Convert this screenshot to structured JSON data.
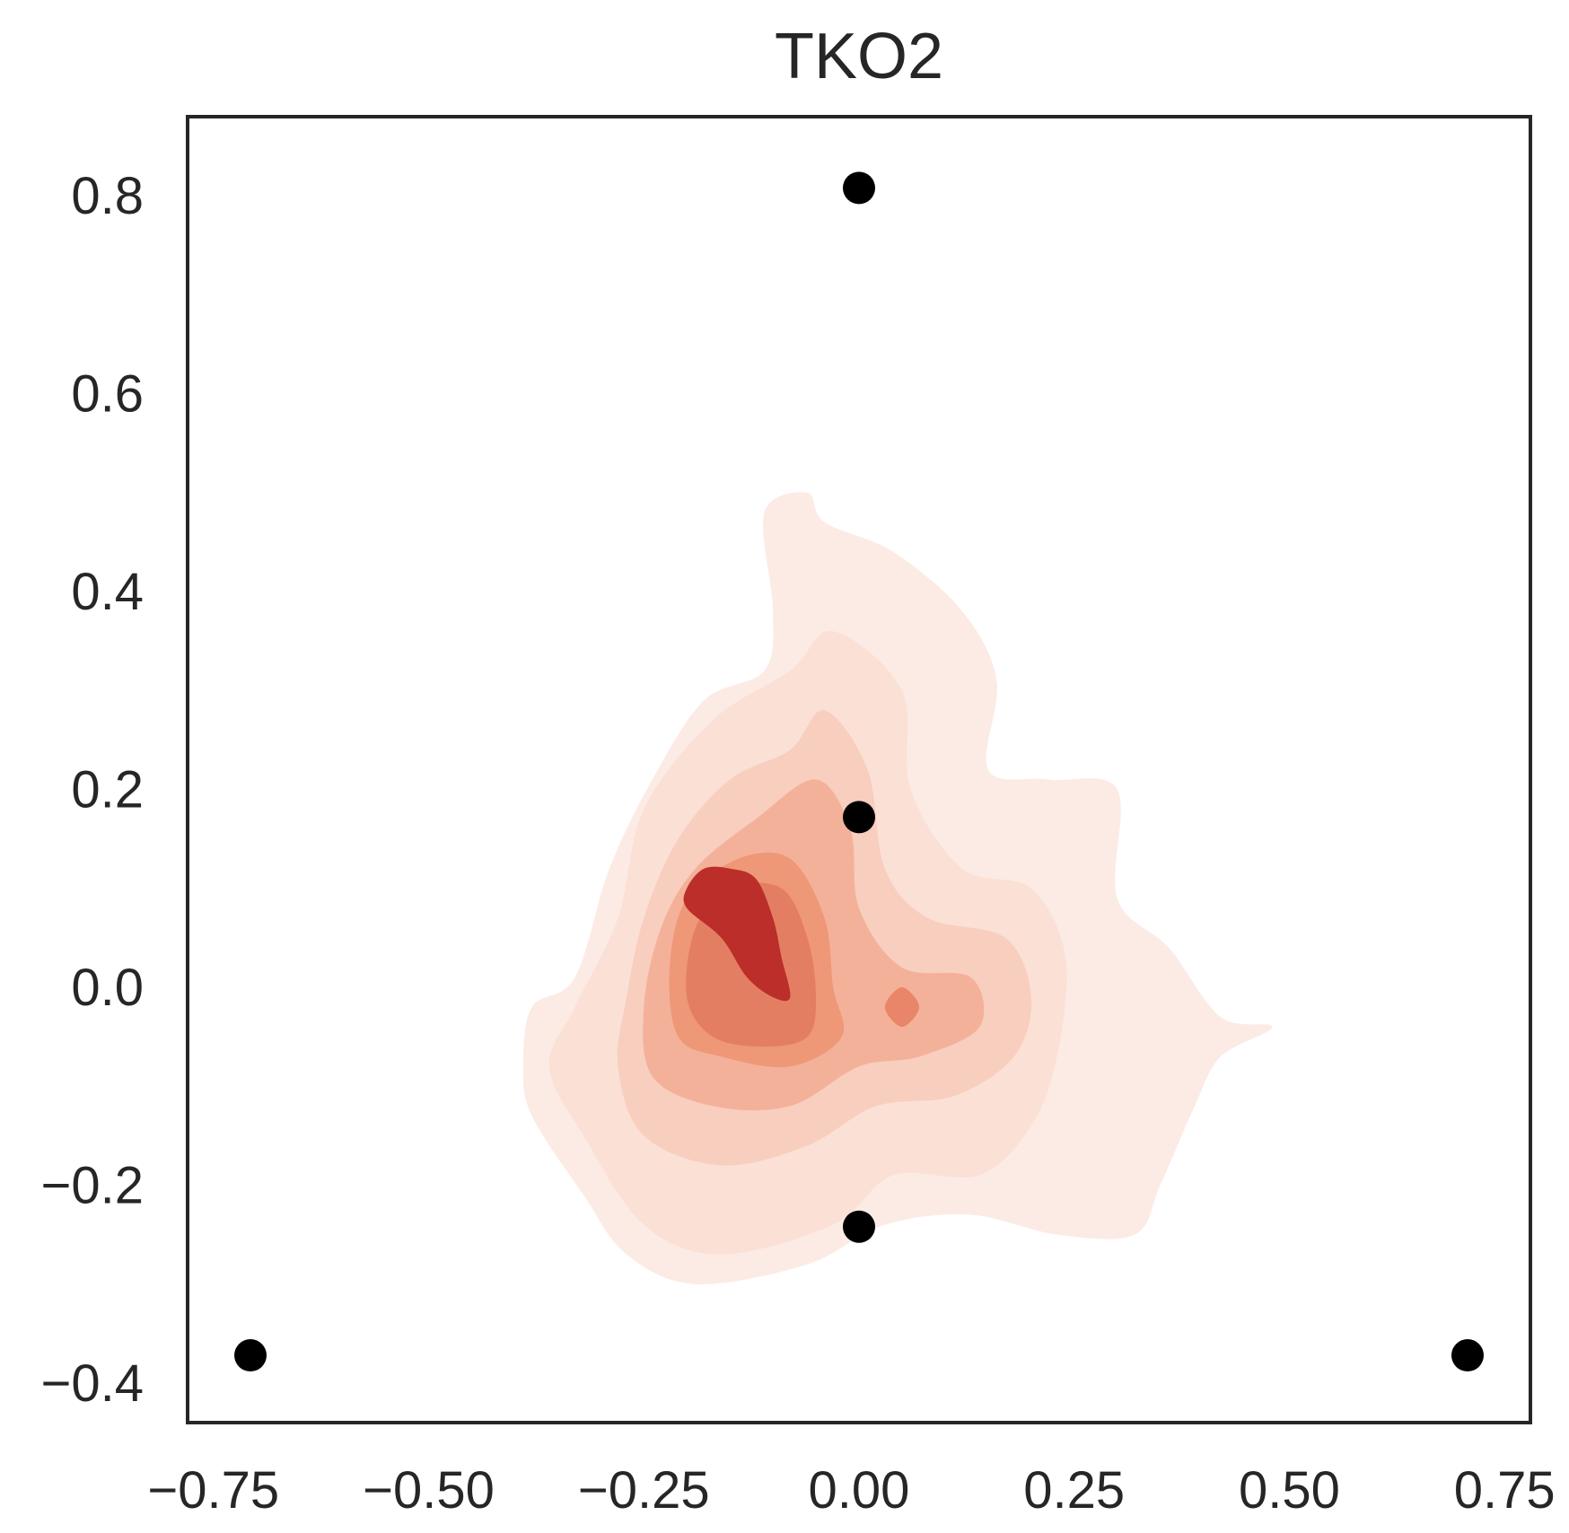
{
  "chart_data": {
    "type": "scatter",
    "title": "TKO2",
    "xlabel": "",
    "ylabel": "",
    "xlim": [
      -0.78,
      0.78
    ],
    "ylim": [
      -0.44,
      0.88
    ],
    "grid": false,
    "legend": "none",
    "x_ticks": [
      "−0.75",
      "−0.50",
      "−0.25",
      "0.00",
      "0.25",
      "0.50",
      "0.75"
    ],
    "x_tick_values": [
      -0.75,
      -0.5,
      -0.25,
      0.0,
      0.25,
      0.5,
      0.75
    ],
    "y_ticks": [
      "−0.4",
      "−0.2",
      "0.0",
      "0.2",
      "0.4",
      "0.6",
      "0.8"
    ],
    "y_tick_values": [
      -0.4,
      -0.2,
      0.0,
      0.2,
      0.4,
      0.6,
      0.8
    ],
    "points": [
      {
        "x": 0.0,
        "y": 0.808
      },
      {
        "x": 0.0,
        "y": 0.172
      },
      {
        "x": 0.0,
        "y": -0.242
      },
      {
        "x": -0.707,
        "y": -0.372
      },
      {
        "x": 0.707,
        "y": -0.372
      }
    ],
    "point_color": "#000000",
    "density": {
      "type": "kde-filled-contour",
      "colormap": "Reds",
      "levels": [
        {
          "color": "#fcebe5",
          "polygon": [
            [
              -0.06,
              0.5
            ],
            [
              -0.04,
              0.47
            ],
            [
              0.04,
              0.44
            ],
            [
              0.12,
              0.38
            ],
            [
              0.16,
              0.31
            ],
            [
              0.15,
              0.22
            ],
            [
              0.22,
              0.21
            ],
            [
              0.3,
              0.2
            ],
            [
              0.3,
              0.09
            ],
            [
              0.36,
              0.04
            ],
            [
              0.42,
              -0.03
            ],
            [
              0.48,
              -0.04
            ],
            [
              0.42,
              -0.07
            ],
            [
              0.39,
              -0.12
            ],
            [
              0.35,
              -0.2
            ],
            [
              0.32,
              -0.25
            ],
            [
              0.23,
              -0.25
            ],
            [
              0.13,
              -0.23
            ],
            [
              0.03,
              -0.24
            ],
            [
              -0.06,
              -0.28
            ],
            [
              -0.19,
              -0.3
            ],
            [
              -0.27,
              -0.27
            ],
            [
              -0.32,
              -0.21
            ],
            [
              -0.38,
              -0.13
            ],
            [
              -0.39,
              -0.08
            ],
            [
              -0.38,
              -0.02
            ],
            [
              -0.33,
              0.01
            ],
            [
              -0.29,
              0.12
            ],
            [
              -0.24,
              0.21
            ],
            [
              -0.18,
              0.29
            ],
            [
              -0.11,
              0.32
            ],
            [
              -0.1,
              0.38
            ],
            [
              -0.11,
              0.48
            ]
          ]
        },
        {
          "color": "#fbe0d5",
          "polygon": [
            [
              -0.03,
              0.36
            ],
            [
              0.05,
              0.3
            ],
            [
              0.06,
              0.2
            ],
            [
              0.12,
              0.12
            ],
            [
              0.2,
              0.1
            ],
            [
              0.24,
              0.03
            ],
            [
              0.23,
              -0.07
            ],
            [
              0.2,
              -0.14
            ],
            [
              0.14,
              -0.19
            ],
            [
              0.04,
              -0.19
            ],
            [
              -0.03,
              -0.24
            ],
            [
              -0.16,
              -0.27
            ],
            [
              -0.25,
              -0.24
            ],
            [
              -0.32,
              -0.15
            ],
            [
              -0.36,
              -0.08
            ],
            [
              -0.33,
              -0.02
            ],
            [
              -0.28,
              0.07
            ],
            [
              -0.25,
              0.18
            ],
            [
              -0.17,
              0.27
            ],
            [
              -0.08,
              0.32
            ]
          ]
        },
        {
          "color": "#f8cebe",
          "polygon": [
            [
              -0.04,
              0.28
            ],
            [
              0.01,
              0.22
            ],
            [
              0.03,
              0.12
            ],
            [
              0.08,
              0.07
            ],
            [
              0.17,
              0.05
            ],
            [
              0.2,
              -0.01
            ],
            [
              0.18,
              -0.07
            ],
            [
              0.11,
              -0.11
            ],
            [
              0.02,
              -0.12
            ],
            [
              -0.06,
              -0.16
            ],
            [
              -0.16,
              -0.18
            ],
            [
              -0.25,
              -0.15
            ],
            [
              -0.28,
              -0.08
            ],
            [
              -0.27,
              -0.01
            ],
            [
              -0.25,
              0.07
            ],
            [
              -0.21,
              0.15
            ],
            [
              -0.15,
              0.21
            ],
            [
              -0.08,
              0.24
            ]
          ]
        },
        {
          "color": "#f4b19a",
          "polygon": [
            [
              -0.05,
              0.21
            ],
            [
              -0.01,
              0.16
            ],
            [
              0.0,
              0.08
            ],
            [
              0.05,
              0.02
            ],
            [
              0.13,
              0.01
            ],
            [
              0.14,
              -0.04
            ],
            [
              0.07,
              -0.07
            ],
            [
              0.0,
              -0.08
            ],
            [
              -0.08,
              -0.12
            ],
            [
              -0.17,
              -0.12
            ],
            [
              -0.24,
              -0.09
            ],
            [
              -0.25,
              -0.02
            ],
            [
              -0.23,
              0.06
            ],
            [
              -0.19,
              0.12
            ],
            [
              -0.12,
              0.17
            ]
          ]
        },
        {
          "color": "#ee9878",
          "polygon": [
            [
              -0.08,
              0.13
            ],
            [
              -0.04,
              0.07
            ],
            [
              -0.03,
              0.0
            ],
            [
              -0.02,
              -0.05
            ],
            [
              -0.08,
              -0.08
            ],
            [
              -0.16,
              -0.07
            ],
            [
              -0.21,
              -0.05
            ],
            [
              -0.22,
              0.02
            ],
            [
              -0.2,
              0.09
            ],
            [
              -0.14,
              0.13
            ]
          ]
        },
        {
          "color": "#e98568",
          "polygon": [
            [
              0.05,
              0.0
            ],
            [
              0.07,
              -0.02
            ],
            [
              0.05,
              -0.04
            ],
            [
              0.03,
              -0.02
            ]
          ]
        },
        {
          "color": "#e47e62",
          "polygon": [
            [
              -0.09,
              0.1
            ],
            [
              -0.06,
              0.05
            ],
            [
              -0.05,
              -0.01
            ],
            [
              -0.06,
              -0.05
            ],
            [
              -0.11,
              -0.06
            ],
            [
              -0.17,
              -0.05
            ],
            [
              -0.2,
              -0.01
            ],
            [
              -0.19,
              0.06
            ],
            [
              -0.15,
              0.1
            ]
          ]
        },
        {
          "color": "#bb2e29",
          "polygon": [
            [
              -0.15,
              0.12
            ],
            [
              -0.12,
              0.11
            ],
            [
              -0.1,
              0.07
            ],
            [
              -0.09,
              0.03
            ],
            [
              -0.08,
              -0.01
            ],
            [
              -0.1,
              -0.01
            ],
            [
              -0.13,
              0.01
            ],
            [
              -0.16,
              0.05
            ],
            [
              -0.2,
              0.08
            ],
            [
              -0.2,
              0.1
            ],
            [
              -0.18,
              0.12
            ]
          ]
        }
      ]
    }
  }
}
